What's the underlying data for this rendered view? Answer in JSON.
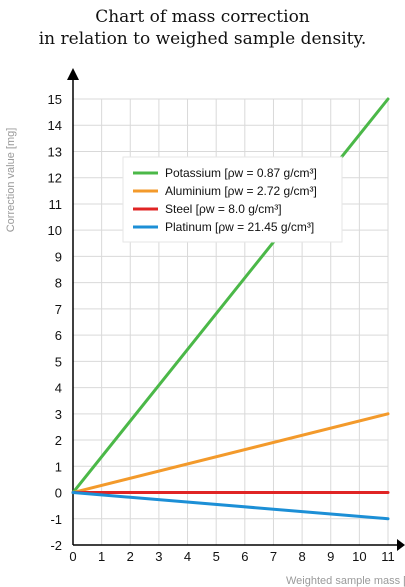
{
  "chart_data": {
    "type": "line",
    "title_line1": "Chart of mass correction",
    "title_line2": "in relation to weighed sample density.",
    "ylabel": "Correction value [mg]",
    "xlabel": "Weighted sample mass [g]",
    "xlim": [
      0,
      11
    ],
    "ylim": [
      -2,
      15
    ],
    "x_ticks": [
      "0",
      "1",
      "2",
      "3",
      "4",
      "5",
      "6",
      "7",
      "8",
      "9",
      "10",
      "11"
    ],
    "y_ticks": [
      "-2",
      "-1",
      "0",
      "1",
      "2",
      "3",
      "4",
      "5",
      "6",
      "7",
      "8",
      "9",
      "10",
      "11",
      "12",
      "13",
      "14",
      "15"
    ],
    "grid": true,
    "legend_position": "upper-middle",
    "series": [
      {
        "name": "Potassium [ρw = 0.87 g/cm³]",
        "color": "#4bb848",
        "x": [
          0,
          11
        ],
        "y": [
          0,
          15
        ]
      },
      {
        "name": "Aluminium [ρw = 2.72 g/cm³]",
        "color": "#f39a2b",
        "x": [
          0,
          11
        ],
        "y": [
          0,
          3
        ]
      },
      {
        "name": "Steel [ρw = 8.0 g/cm³]",
        "color": "#e02424",
        "x": [
          0,
          11
        ],
        "y": [
          0,
          0
        ]
      },
      {
        "name": "Platinum [ρw = 21.45 g/cm³]",
        "color": "#1c8fd6",
        "x": [
          0,
          11
        ],
        "y": [
          0,
          -1
        ]
      }
    ]
  }
}
